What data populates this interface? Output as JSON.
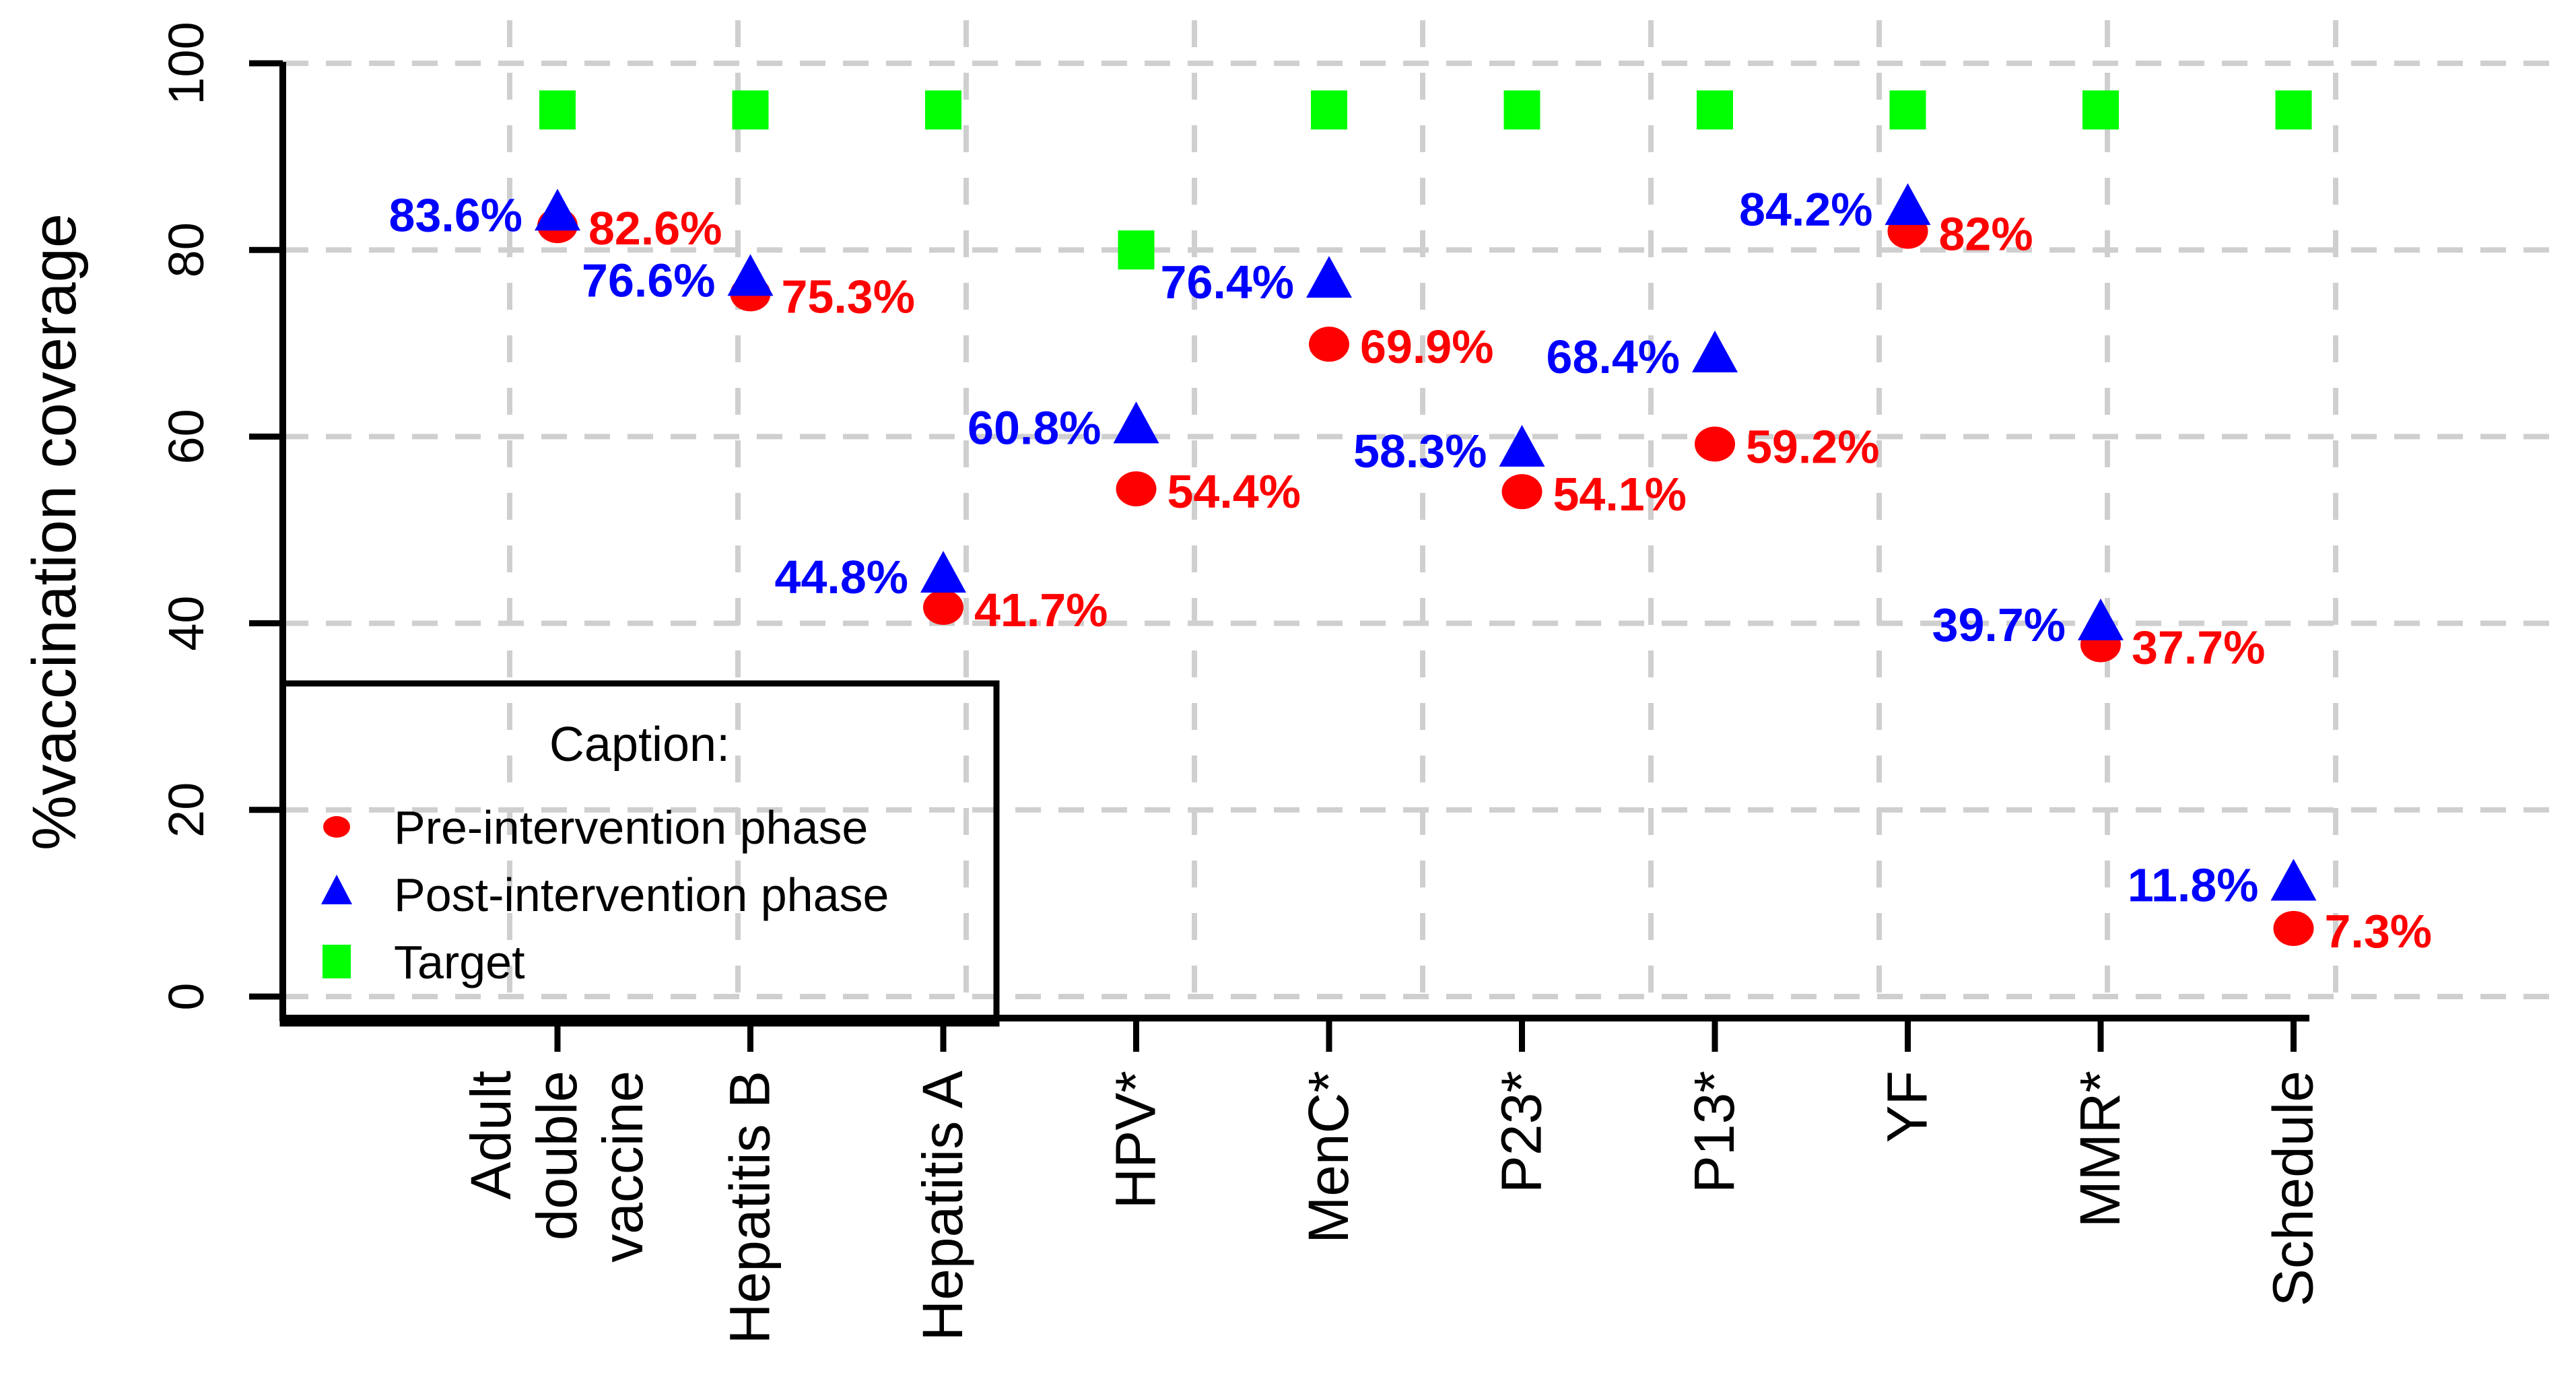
{
  "chart_data": {
    "type": "scatter",
    "title": "",
    "xlabel": "",
    "ylabel": "%vaccination coverage",
    "ylim": [
      0,
      100
    ],
    "yticks": [
      0,
      20,
      40,
      60,
      80,
      100
    ],
    "grid": true,
    "grid_color": "#CFCFCF",
    "axis_color": "#000000",
    "background_color": "#FFFFFF",
    "categories": [
      "Adult double vaccine",
      "Hepatitis B",
      "Hepatitis A",
      "HPV*",
      "MenC*",
      "P23*",
      "P13*",
      "YF",
      "MMR*",
      "Schedule"
    ],
    "category_label_lines": [
      [
        "Adult",
        "double",
        "vaccine"
      ],
      [
        "Hepatitis B"
      ],
      [
        "Hepatitis A"
      ],
      [
        "HPV*"
      ],
      [
        "MenC*"
      ],
      [
        "P23*"
      ],
      [
        "P13*"
      ],
      [
        "YF"
      ],
      [
        "MMR*"
      ],
      [
        "Schedule"
      ]
    ],
    "series": [
      {
        "name": "Pre-intervention phase",
        "marker": "circle",
        "color": "#FF0000",
        "values": [
          82.6,
          75.3,
          41.7,
          54.4,
          69.9,
          54.1,
          59.2,
          82,
          37.7,
          7.3
        ],
        "labels": [
          "82.6%",
          "75.3%",
          "41.7%",
          "54.4%",
          "69.9%",
          "54.1%",
          "59.2%",
          "82%",
          "37.7%",
          "7.3%"
        ],
        "label_side": "right"
      },
      {
        "name": "Post-intervention phase",
        "marker": "triangle",
        "color": "#0000FF",
        "values": [
          83.6,
          76.6,
          44.8,
          60.8,
          76.4,
          58.3,
          68.4,
          84.2,
          39.7,
          11.8
        ],
        "labels": [
          "83.6%",
          "76.6%",
          "44.8%",
          "60.8%",
          "76.4%",
          "58.3%",
          "68.4%",
          "84.2%",
          "39.7%",
          "11.8%"
        ],
        "label_side": "left"
      },
      {
        "name": "Target",
        "marker": "square",
        "color": "#00FF00",
        "values": [
          95,
          95,
          95,
          80,
          95,
          95,
          95,
          95,
          95,
          95
        ],
        "labels": null,
        "label_side": "none"
      }
    ],
    "legend": {
      "title": "Caption:",
      "position": "bottom-left",
      "entries": [
        {
          "label": "Pre-intervention phase",
          "marker": "circle",
          "color": "#FF0000"
        },
        {
          "label": "Post-intervention phase",
          "marker": "triangle",
          "color": "#0000FF"
        },
        {
          "label": "Target",
          "marker": "square",
          "color": "#00FF00"
        }
      ]
    }
  }
}
